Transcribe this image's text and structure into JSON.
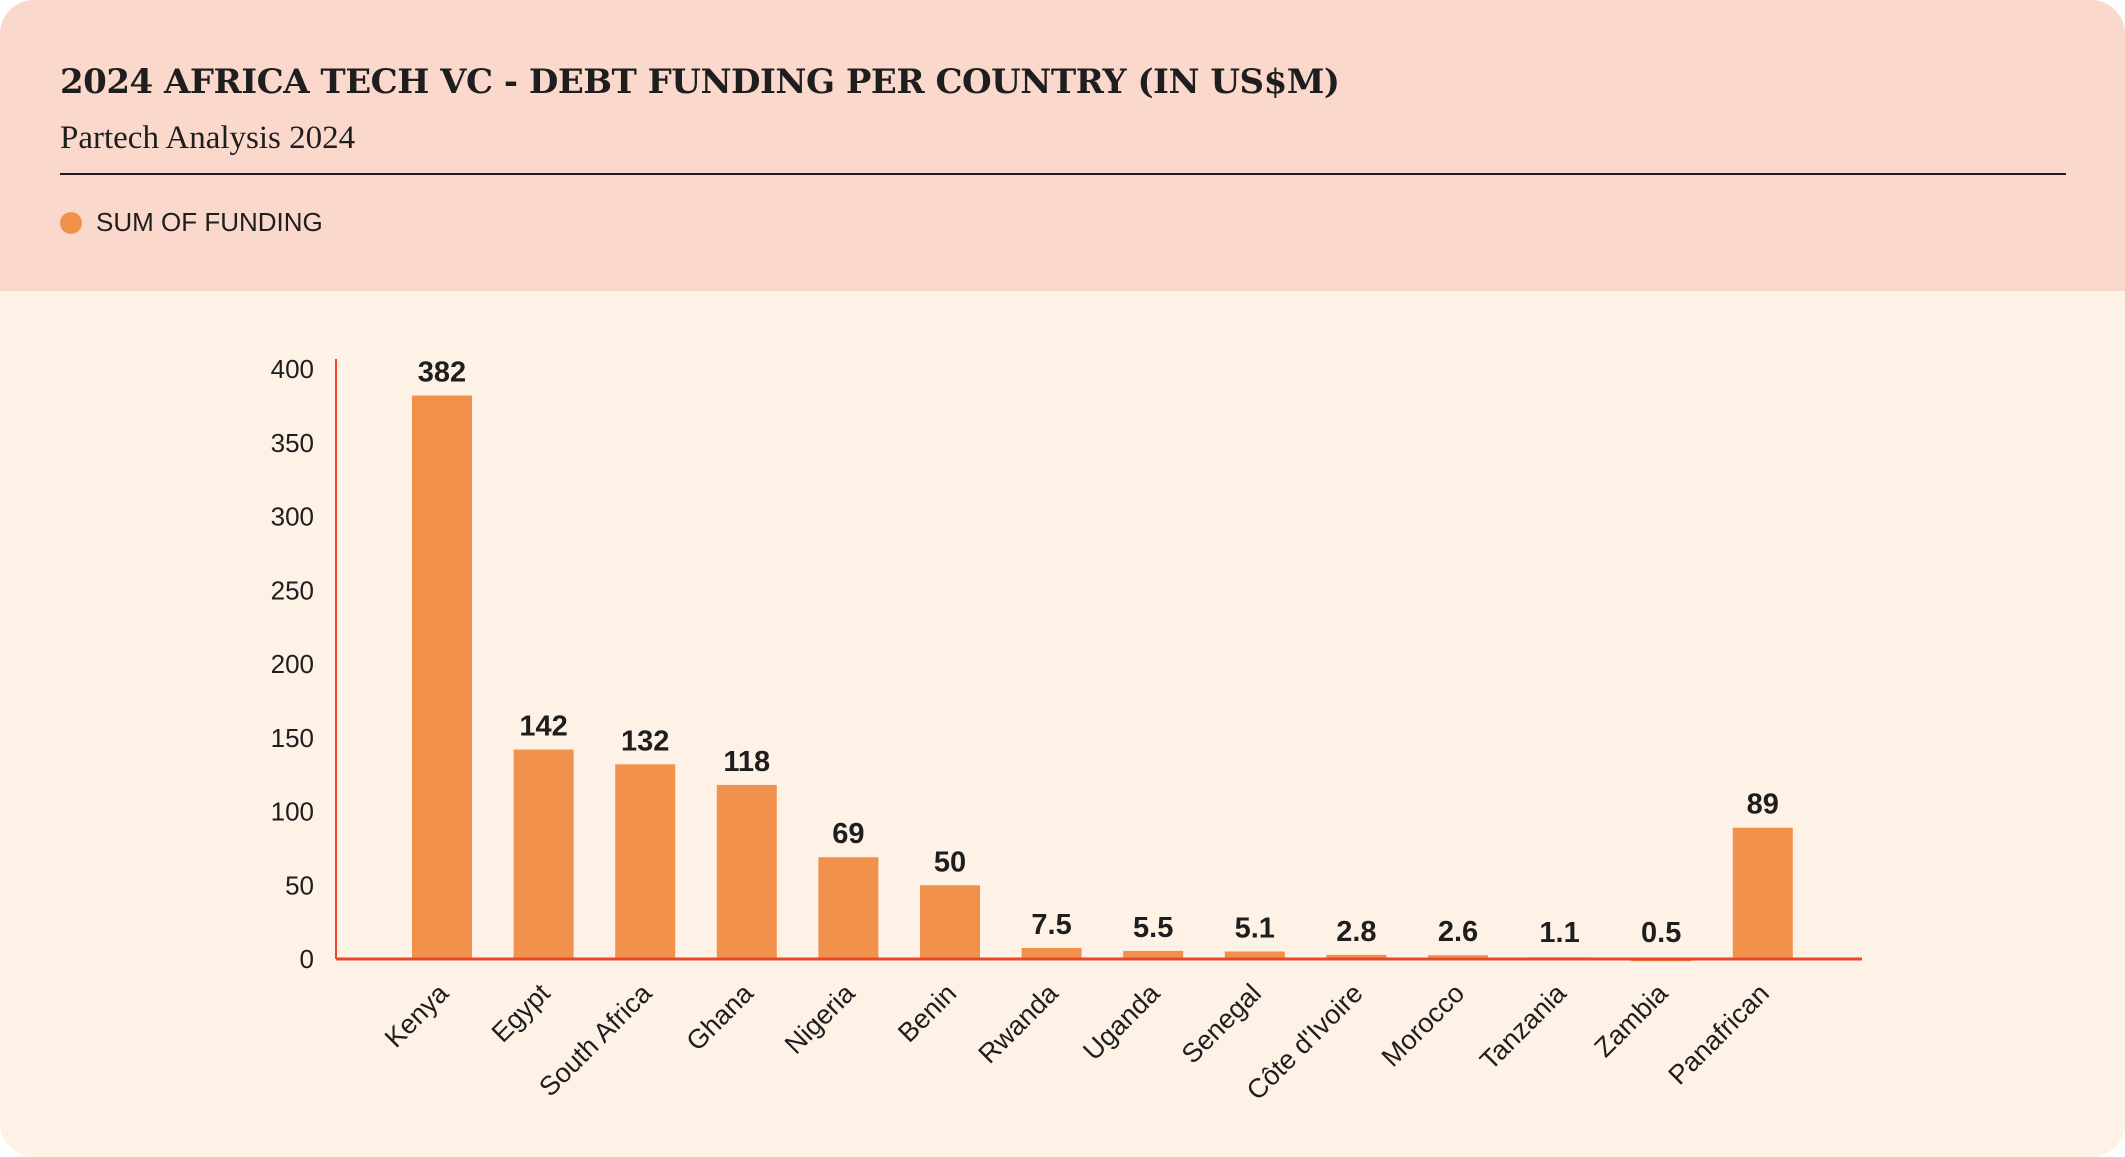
{
  "header": {
    "title": "2024 AFRICA TECH VC - DEBT FUNDING PER COUNTRY (IN US$M)",
    "subtitle": "Partech Analysis 2024"
  },
  "legend": {
    "label": "SUM OF FUNDING",
    "color": "#f2914c"
  },
  "colors": {
    "bar": "#f2914c",
    "axis": "#e8472a",
    "header_bg": "#fad8cc",
    "body_bg": "#fef1e6"
  },
  "chart_data": {
    "type": "bar",
    "title": "2024 AFRICA TECH VC - DEBT FUNDING PER COUNTRY (IN US$M)",
    "subtitle": "Partech Analysis 2024",
    "categories": [
      "Kenya",
      "Egypt",
      "South Africa",
      "Ghana",
      "Nigeria",
      "Benin",
      "Rwanda",
      "Uganda",
      "Senegal",
      "Côte d'Ivoire",
      "Morocco",
      "Tanzania",
      "Zambia",
      "Panafrican"
    ],
    "series": [
      {
        "name": "SUM OF FUNDING",
        "values": [
          382,
          142,
          132,
          118,
          69,
          50,
          7.5,
          5.5,
          5.1,
          2.8,
          2.6,
          1.1,
          0.5,
          89
        ]
      }
    ],
    "value_labels": [
      "382",
      "142",
      "132",
      "118",
      "69",
      "50",
      "7.5",
      "5.5",
      "5.1",
      "2.8",
      "2.6",
      "1.1",
      "0.5",
      "89"
    ],
    "yticks": [
      "0",
      "50",
      "100",
      "150",
      "200",
      "250",
      "300",
      "350",
      "400"
    ],
    "xlabel": "",
    "ylabel": "",
    "ylim": [
      0,
      400
    ],
    "grid": false,
    "legend_position": "top-left"
  }
}
